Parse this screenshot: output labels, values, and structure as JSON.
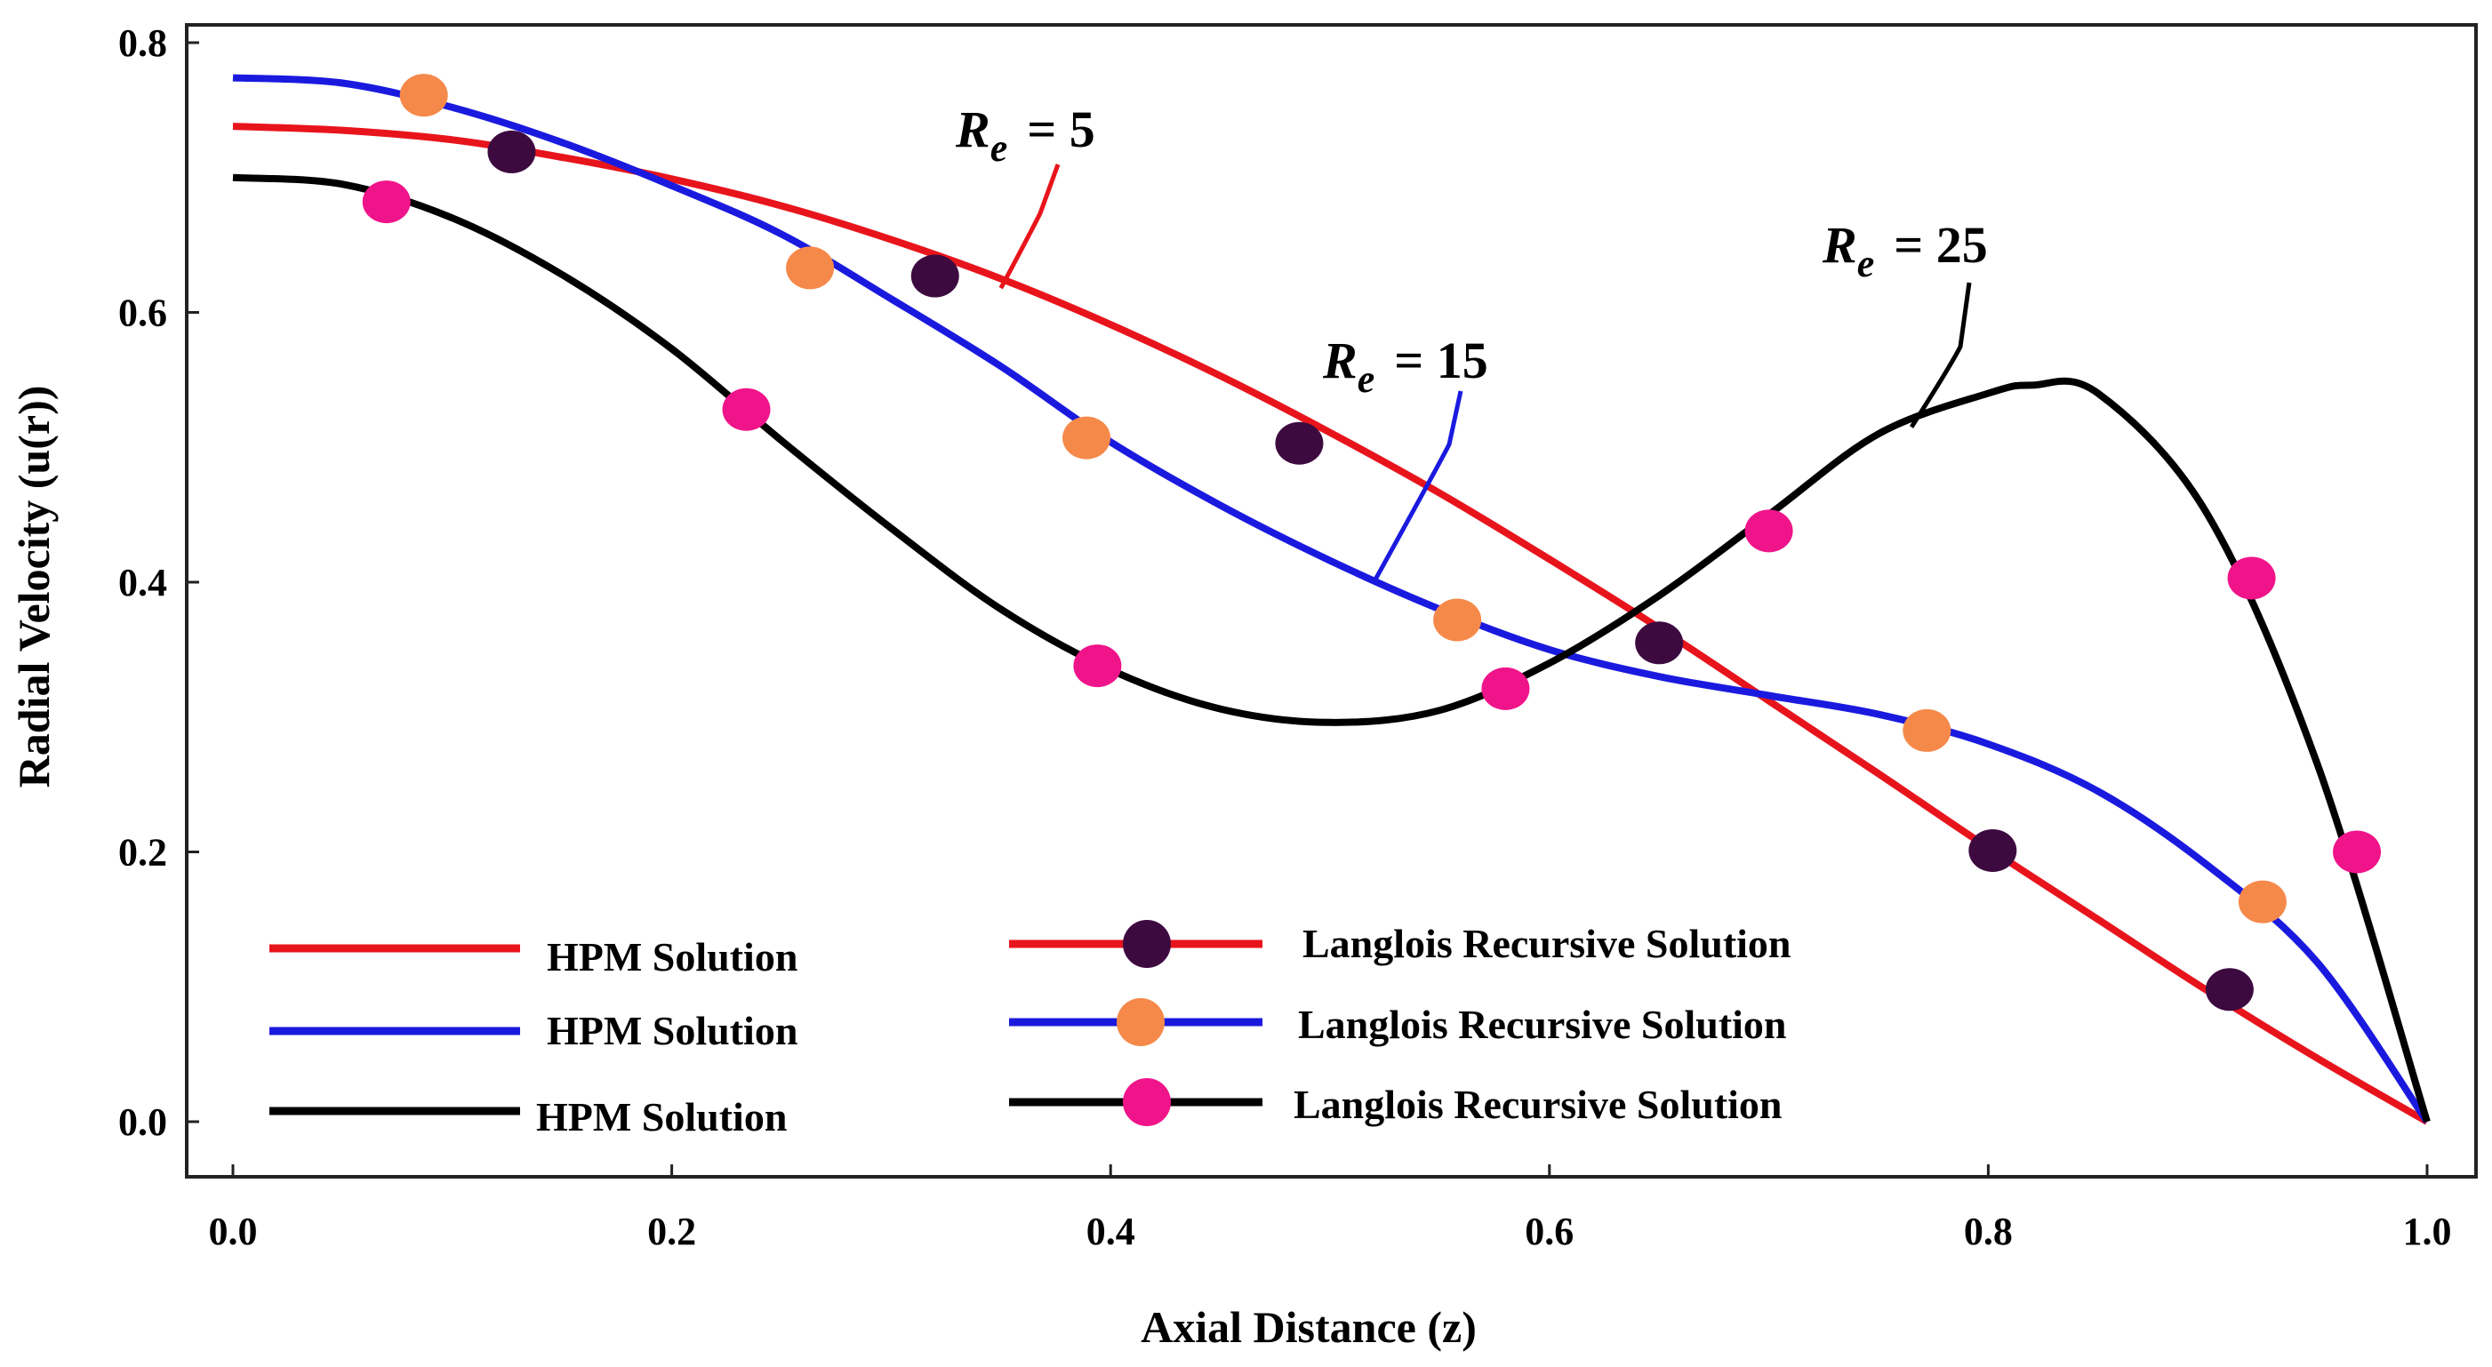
{
  "chart_data": {
    "type": "line",
    "title": "",
    "xlabel": "Axial Distance (z)",
    "ylabel": "Radial Velocity (u(r))",
    "xlim": [
      0,
      1.0
    ],
    "ylim": [
      0,
      0.8
    ],
    "xticks": [
      "0.0",
      "0.2",
      "0.4",
      "0.6",
      "0.8",
      "1.0"
    ],
    "yticks": [
      "0.0",
      "0.2",
      "0.4",
      "0.6",
      "0.8"
    ],
    "xtick_values": [
      0,
      0.2,
      0.4,
      0.6,
      0.8,
      1.0
    ],
    "ytick_values": [
      0,
      0.2,
      0.4,
      0.6,
      0.8
    ],
    "grid": false,
    "legend_position": "bottom-left",
    "series": [
      {
        "name": "HPM Solution",
        "re": "Re = 5",
        "color": "#e8141c",
        "marker_color": "#3d0a40",
        "marker_name": "Langlois Recursive Solution",
        "x": [
          0,
          0.05,
          0.1,
          0.15,
          0.2,
          0.25,
          0.3,
          0.35,
          0.4,
          0.45,
          0.5,
          0.55,
          0.6,
          0.65,
          0.7,
          0.75,
          0.8,
          0.85,
          0.9,
          0.95,
          1.0
        ],
        "y": [
          0.738,
          0.735,
          0.728,
          0.715,
          0.699,
          0.679,
          0.654,
          0.625,
          0.591,
          0.553,
          0.511,
          0.466,
          0.417,
          0.366,
          0.312,
          0.258,
          0.203,
          0.15,
          0.097,
          0.047,
          0.0
        ],
        "markers_x": [
          0.127,
          0.32,
          0.486,
          0.65,
          0.802,
          0.91
        ],
        "markers_y": [
          0.719,
          0.627,
          0.503,
          0.355,
          0.201,
          0.098
        ]
      },
      {
        "name": "HPM Solution",
        "re": "Re = 15",
        "color": "#1a1adf",
        "marker_color": "#f5894a",
        "marker_name": "Langlois Recursive Solution",
        "x": [
          0,
          0.05,
          0.1,
          0.15,
          0.2,
          0.25,
          0.3,
          0.35,
          0.4,
          0.45,
          0.5,
          0.55,
          0.6,
          0.65,
          0.7,
          0.75,
          0.8,
          0.85,
          0.9,
          0.95,
          1.0
        ],
        "y": [
          0.774,
          0.77,
          0.752,
          0.726,
          0.694,
          0.658,
          0.61,
          0.56,
          0.504,
          0.457,
          0.416,
          0.38,
          0.35,
          0.33,
          0.316,
          0.302,
          0.28,
          0.245,
          0.19,
          0.118,
          0.0
        ],
        "markers_x": [
          0.087,
          0.263,
          0.389,
          0.558,
          0.772,
          0.925
        ],
        "markers_y": [
          0.761,
          0.633,
          0.507,
          0.372,
          0.29,
          0.163
        ]
      },
      {
        "name": "HPM Solution",
        "re": "Re = 25",
        "color": "#000000",
        "marker_color": "#f0148a",
        "marker_name": "Langlois Recursive Solution",
        "x": [
          0,
          0.05,
          0.1,
          0.15,
          0.2,
          0.25,
          0.3,
          0.35,
          0.4,
          0.45,
          0.5,
          0.55,
          0.6,
          0.65,
          0.7,
          0.75,
          0.8,
          0.82,
          0.85,
          0.9,
          0.95,
          1.0
        ],
        "y": [
          0.7,
          0.695,
          0.67,
          0.628,
          0.573,
          0.505,
          0.44,
          0.38,
          0.335,
          0.306,
          0.296,
          0.305,
          0.34,
          0.39,
          0.45,
          0.51,
          0.54,
          0.546,
          0.54,
          0.45,
          0.265,
          0.0
        ],
        "markers_x": [
          0.07,
          0.234,
          0.394,
          0.58,
          0.7,
          0.92,
          0.968
        ],
        "markers_y": [
          0.682,
          0.528,
          0.338,
          0.321,
          0.438,
          0.403,
          0.2
        ]
      }
    ],
    "annotations": [
      {
        "label": "R",
        "sub": "e",
        "value": "= 5"
      },
      {
        "label": "R",
        "sub": "e",
        "value": "= 15"
      },
      {
        "label": "R",
        "sub": "e",
        "value": "= 25"
      }
    ],
    "legend": {
      "left": [
        "HPM Solution",
        "HPM Solution",
        "HPM Solution"
      ],
      "right": [
        "Langlois Recursive Solution",
        "Langlois Recursive Solution",
        "Langlois Recursive Solution"
      ]
    }
  }
}
